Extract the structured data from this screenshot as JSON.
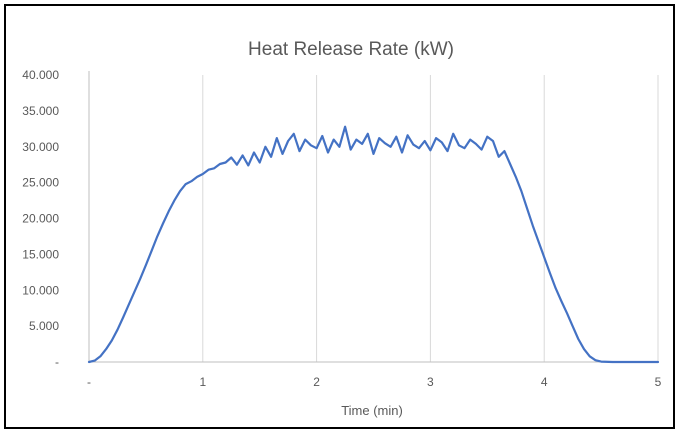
{
  "chart_data": {
    "type": "line",
    "title": "Heat Release Rate (kW)",
    "xlabel": "Time (min)",
    "ylabel": "",
    "xlim": [
      0,
      5
    ],
    "ylim": [
      0,
      40000
    ],
    "x_ticks": [
      0,
      1,
      2,
      3,
      4,
      5
    ],
    "x_tick_labels": [
      "-",
      "1",
      "2",
      "3",
      "4",
      "5"
    ],
    "y_ticks": [
      0,
      5000,
      10000,
      15000,
      20000,
      25000,
      30000,
      35000,
      40000
    ],
    "y_tick_labels": [
      "-",
      "5.000",
      "10.000",
      "15.000",
      "20.000",
      "25.000",
      "30.000",
      "35.000",
      "40.000"
    ],
    "grid": "vertical",
    "legend": "none",
    "series_color": "#4472C4",
    "series": [
      {
        "x": [
          0.0,
          0.05,
          0.1,
          0.15,
          0.2,
          0.25,
          0.3,
          0.35,
          0.4,
          0.45,
          0.5,
          0.55,
          0.6,
          0.65,
          0.7,
          0.75,
          0.8,
          0.85,
          0.9,
          0.95,
          1.0,
          1.05,
          1.1,
          1.15,
          1.2,
          1.25,
          1.3,
          1.35,
          1.4,
          1.45,
          1.5,
          1.55,
          1.6,
          1.65,
          1.7,
          1.75,
          1.8,
          1.85,
          1.9,
          1.95,
          2.0,
          2.05,
          2.1,
          2.15,
          2.2,
          2.25,
          2.3,
          2.35,
          2.4,
          2.45,
          2.5,
          2.55,
          2.6,
          2.65,
          2.7,
          2.75,
          2.8,
          2.85,
          2.9,
          2.95,
          3.0,
          3.05,
          3.1,
          3.15,
          3.2,
          3.25,
          3.3,
          3.35,
          3.4,
          3.45,
          3.5,
          3.55,
          3.6,
          3.65,
          3.7,
          3.75,
          3.8,
          3.85,
          3.9,
          3.95,
          4.0,
          4.05,
          4.1,
          4.15,
          4.2,
          4.25,
          4.3,
          4.35,
          4.4,
          4.45,
          4.5,
          4.6,
          4.7,
          4.8,
          4.9,
          5.0
        ],
        "y": [
          0,
          200,
          800,
          1800,
          3000,
          4500,
          6200,
          8000,
          9800,
          11600,
          13500,
          15500,
          17500,
          19300,
          21000,
          22500,
          23800,
          24800,
          25200,
          25800,
          26200,
          26800,
          27000,
          27600,
          27800,
          28500,
          27500,
          28800,
          27400,
          29200,
          27800,
          30000,
          28600,
          31200,
          29000,
          30800,
          31800,
          29400,
          31000,
          30200,
          29800,
          31500,
          29200,
          31000,
          30000,
          32800,
          29600,
          31000,
          30400,
          31800,
          29000,
          31200,
          30500,
          30000,
          31400,
          29200,
          31600,
          30300,
          29800,
          30800,
          29500,
          31200,
          30600,
          29400,
          31800,
          30200,
          29800,
          31000,
          30400,
          29600,
          31400,
          30800,
          28600,
          29400,
          27600,
          25800,
          23800,
          21400,
          19000,
          16800,
          14600,
          12400,
          10300,
          8500,
          6800,
          5000,
          3200,
          1800,
          800,
          250,
          50,
          0,
          0,
          0,
          0,
          0
        ]
      }
    ]
  }
}
